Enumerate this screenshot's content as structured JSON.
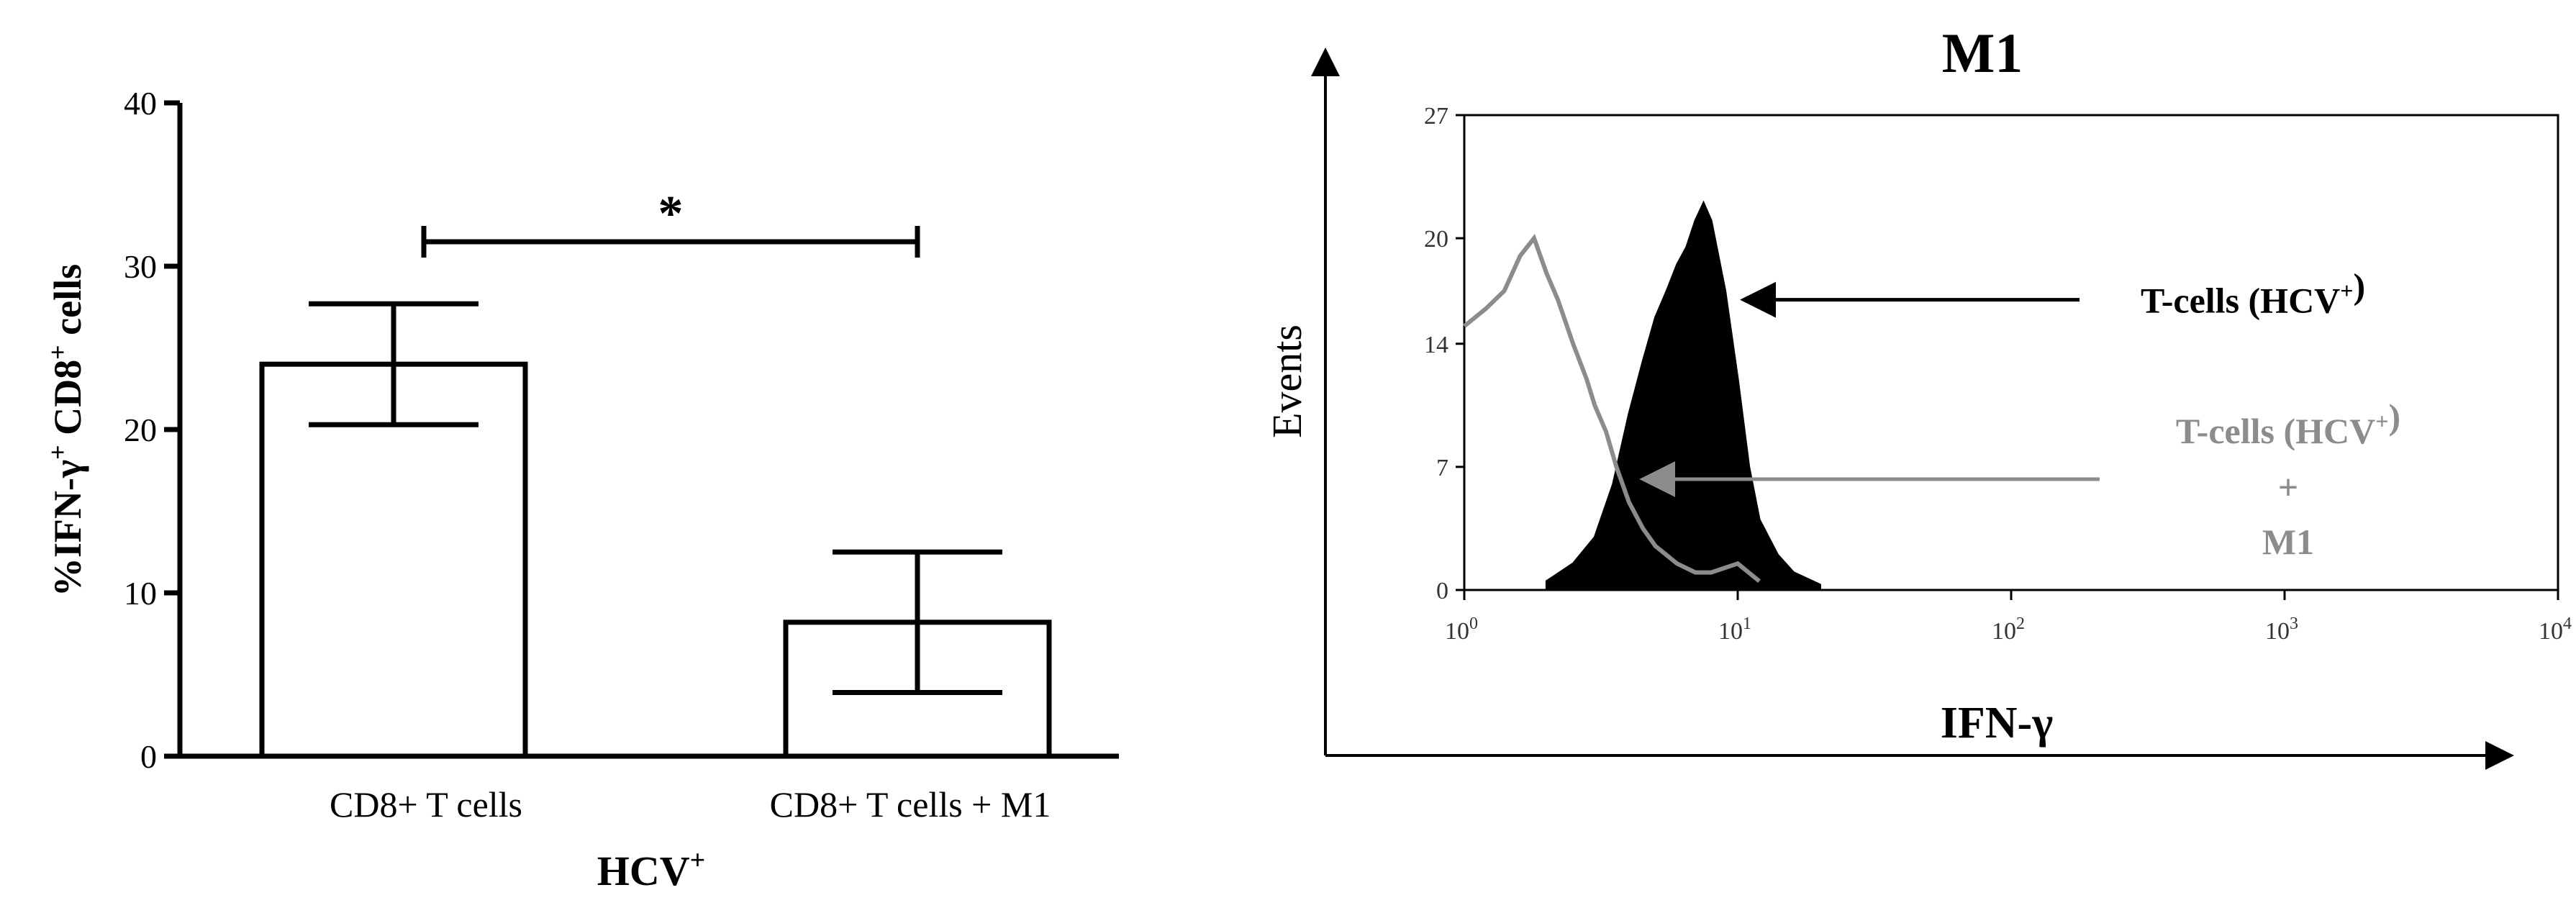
{
  "chart_data": [
    {
      "type": "bar",
      "title": "",
      "ylabel_parts": [
        "%IFN-γ",
        "+",
        " CD8",
        "+",
        " cells"
      ],
      "ylabel": "%IFN-γ+ CD8+ cells",
      "xlabel_parts": [
        "HCV",
        "+"
      ],
      "xlabel": "HCV+",
      "categories": [
        "CD8+ T cells",
        "CD8+ T cells + M1"
      ],
      "values": [
        24,
        8.2
      ],
      "errors": [
        3.7,
        4.3
      ],
      "ylim": [
        0,
        40
      ],
      "yticks": [
        "0",
        "10",
        "20",
        "30",
        "40"
      ],
      "grid": false,
      "significance": {
        "label": "*",
        "between": [
          0,
          1
        ],
        "y": 31.5
      }
    },
    {
      "type": "area",
      "title": "M1",
      "xlabel": "IFN-γ",
      "ylabel": "Events",
      "xscale": "log",
      "xlim": [
        1,
        10000
      ],
      "ylim": [
        0,
        27
      ],
      "xticks": [
        {
          "base": "10",
          "exp": "0"
        },
        {
          "base": "10",
          "exp": "1"
        },
        {
          "base": "10",
          "exp": "2"
        },
        {
          "base": "10",
          "exp": "3"
        },
        {
          "base": "10",
          "exp": "4"
        }
      ],
      "yticks": [
        "0",
        "7",
        "14",
        "20",
        "27"
      ],
      "series": [
        {
          "color": "#000000",
          "fill": true,
          "x": [
            2.0,
            2.5,
            3.0,
            3.5,
            4.0,
            4.5,
            5.0,
            5.5,
            6.0,
            6.5,
            7.0,
            7.5,
            8.0,
            9.0,
            10.0,
            11.0,
            12.0,
            14.0,
            16.0,
            20.0
          ],
          "y": [
            0.5,
            1.5,
            3,
            6,
            10,
            13,
            15.5,
            17,
            18.5,
            19.5,
            21,
            22,
            21,
            17,
            12,
            7,
            4,
            2,
            1,
            0.3
          ]
        },
        {
          "color": "#8c8c8c",
          "fill": false,
          "x": [
            1.0,
            1.2,
            1.4,
            1.6,
            1.8,
            2.0,
            2.2,
            2.5,
            2.8,
            3.0,
            3.3,
            3.6,
            4.0,
            4.5,
            5.0,
            6.0,
            7.0,
            8.0,
            10.0,
            12.0
          ],
          "y": [
            15,
            16,
            17,
            19,
            20,
            18,
            16.5,
            14,
            12,
            10.5,
            9,
            7,
            5,
            3.5,
            2.5,
            1.5,
            1,
            1,
            1.5,
            0.5
          ]
        }
      ],
      "annotations": [
        {
          "parts": [
            {
              "t": "T-cells (HCV"
            },
            {
              "t": "+",
              "sup": true
            },
            {
              "t": ")"
            }
          ],
          "color": "#000000",
          "arrow_to": 10.5,
          "y": 16.5
        },
        {
          "lines": [
            [
              {
                "t": "T-cells (HCV"
              },
              {
                "t": "+",
                "sup": true
              },
              {
                "t": ")"
              }
            ],
            [
              {
                "t": "+"
              }
            ],
            [
              {
                "t": "M1"
              }
            ]
          ],
          "color": "#8c8c8c",
          "arrow_to": 4.5,
          "y": 6.3
        }
      ]
    }
  ]
}
